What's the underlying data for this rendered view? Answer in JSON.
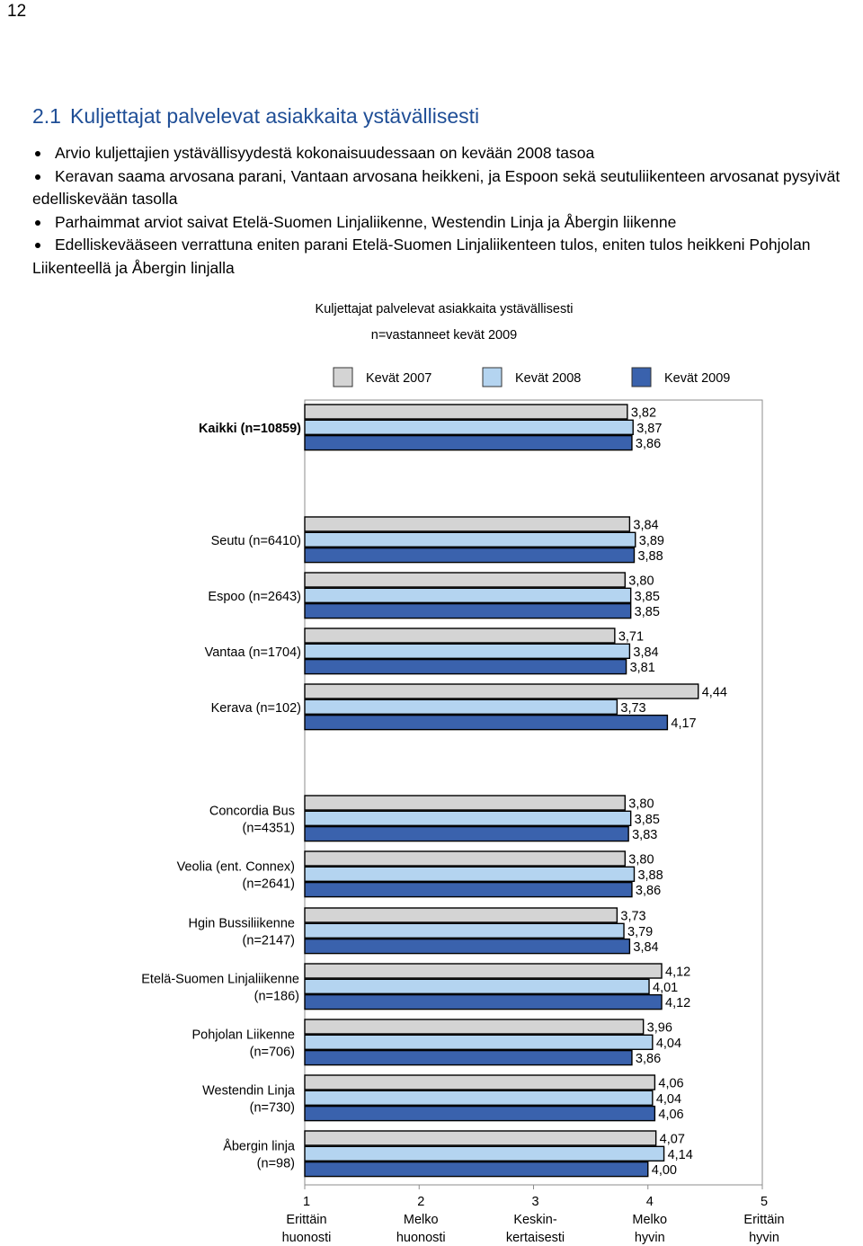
{
  "page": {
    "number": "12"
  },
  "section": {
    "number": "2.1",
    "title": "Kuljettajat palvelevat asiakkaita ystävällisesti"
  },
  "bullets": [
    "Arvio kuljettajien ystävällisyydestä kokonaisuudessaan on kevään 2008 tasoa",
    "Keravan saama arvosana parani, Vantaan arvosana heikkeni, ja Espoon sekä seutuliikenteen arvosanat pysyivät edelliskevään tasolla",
    "Parhaimmat arviot saivat Etelä-Suomen Linjaliikenne, Westendin Linja ja Åbergin liikenne",
    "Edelliskevääseen verrattuna eniten parani Etelä-Suomen Linjaliikenteen tulos, eniten tulos heik­keni Pohjolan Liikenteellä ja Åbergin linjalla"
  ],
  "chart_data": {
    "type": "bar",
    "orientation": "horizontal",
    "title": "Kuljettajat palvelevat asiakkaita ystävällisesti",
    "subtitle": "n=vastanneet kevät 2009",
    "legend": {
      "placement": "top",
      "entries": [
        "Kevät 2007",
        "Kevät 2008",
        "Kevät 2009"
      ]
    },
    "colors": [
      "#d4d4d4",
      "#b4d4f0",
      "#3a62ad"
    ],
    "xlim": [
      1,
      5
    ],
    "x_ticks": [
      {
        "value": 1,
        "label": "1",
        "desc": [
          "Erittäin",
          "huonosti"
        ]
      },
      {
        "value": 2,
        "label": "2",
        "desc": [
          "Melko",
          "huonosti"
        ]
      },
      {
        "value": 3,
        "label": "3",
        "desc": [
          "Keskin-",
          "kertaisesti"
        ]
      },
      {
        "value": 4,
        "label": "4",
        "desc": [
          "Melko",
          "hyvin"
        ]
      },
      {
        "value": 5,
        "label": "5",
        "desc": [
          "Erittäin",
          "hyvin"
        ]
      }
    ],
    "groups": [
      {
        "label": [
          "Kaikki (n=10859)"
        ],
        "bold": true,
        "values": [
          3.82,
          3.87,
          3.86
        ],
        "labels": [
          "3,82",
          "3,87",
          "3,86"
        ]
      },
      {
        "label": [
          "Seutu (n=6410)"
        ],
        "values": [
          3.84,
          3.89,
          3.88
        ],
        "labels": [
          "3,84",
          "3,89",
          "3,88"
        ]
      },
      {
        "label": [
          "Espoo (n=2643)"
        ],
        "values": [
          3.8,
          3.85,
          3.85
        ],
        "labels": [
          "3,80",
          "3,85",
          "3,85"
        ]
      },
      {
        "label": [
          "Vantaa (n=1704)"
        ],
        "values": [
          3.71,
          3.84,
          3.81
        ],
        "labels": [
          "3,71",
          "3,84",
          "3,81"
        ]
      },
      {
        "label": [
          "Kerava (n=102)"
        ],
        "values": [
          4.44,
          3.73,
          4.17
        ],
        "labels": [
          "4,44",
          "3,73",
          "4,17"
        ]
      },
      {
        "label": [
          "Concordia Bus",
          "(n=4351)"
        ],
        "values": [
          3.8,
          3.85,
          3.83
        ],
        "labels": [
          "3,80",
          "3,85",
          "3,83"
        ]
      },
      {
        "label": [
          "Veolia (ent. Connex)",
          "(n=2641)"
        ],
        "values": [
          3.8,
          3.88,
          3.86
        ],
        "labels": [
          "3,80",
          "3,88",
          "3,86"
        ]
      },
      {
        "label": [
          "Hgin Bussiliikenne",
          "(n=2147)"
        ],
        "values": [
          3.73,
          3.79,
          3.84
        ],
        "labels": [
          "3,73",
          "3,79",
          "3,84"
        ]
      },
      {
        "label": [
          "Etelä-Suomen Linjaliikenne",
          "(n=186)"
        ],
        "values": [
          4.12,
          4.01,
          4.12
        ],
        "labels": [
          "4,12",
          "4,01",
          "4,12"
        ]
      },
      {
        "label": [
          "Pohjolan Liikenne",
          "(n=706)"
        ],
        "values": [
          3.96,
          4.04,
          3.86
        ],
        "labels": [
          "3,96",
          "4,04",
          "3,86"
        ]
      },
      {
        "label": [
          "Westendin Linja",
          "(n=730)"
        ],
        "values": [
          4.06,
          4.04,
          4.06
        ],
        "labels": [
          "4,06",
          "4,04",
          "4,06"
        ]
      },
      {
        "label": [
          "Åbergin linja",
          "(n=98)"
        ],
        "values": [
          4.07,
          4.14,
          4.0
        ],
        "labels": [
          "4,07",
          "4,14",
          "4,00"
        ]
      }
    ]
  }
}
